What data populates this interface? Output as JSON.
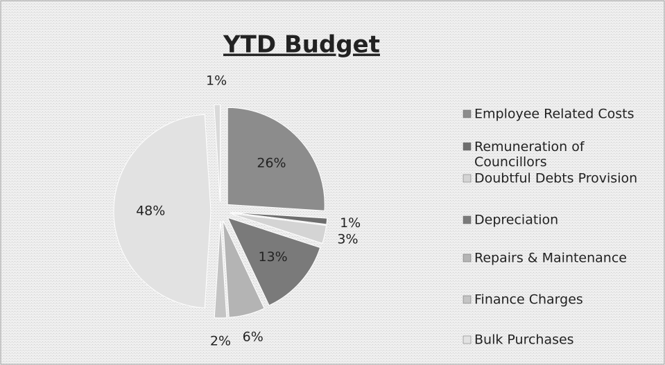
{
  "chart_data": {
    "type": "pie",
    "title": "YTD Budget",
    "categories": [
      "Employee Related Costs",
      "Remuneration of Councillors",
      "Doubtful Debts Provision",
      "Depreciation",
      "Repairs & Maintenance",
      "Finance Charges",
      "Bulk Purchases",
      null
    ],
    "values": [
      26,
      1,
      3,
      13,
      6,
      2,
      48,
      1
    ],
    "value_labels": [
      "26%",
      "1%",
      "3%",
      "13%",
      "6%",
      "2%",
      "48%",
      "1%"
    ],
    "colors": [
      "#8c8c8c",
      "#6e6e6e",
      "#d4d4d4",
      "#7a7a7a",
      "#b4b4b4",
      "#c4c4c4",
      "#e2e2e2",
      "#dadada"
    ],
    "legend": "right"
  }
}
